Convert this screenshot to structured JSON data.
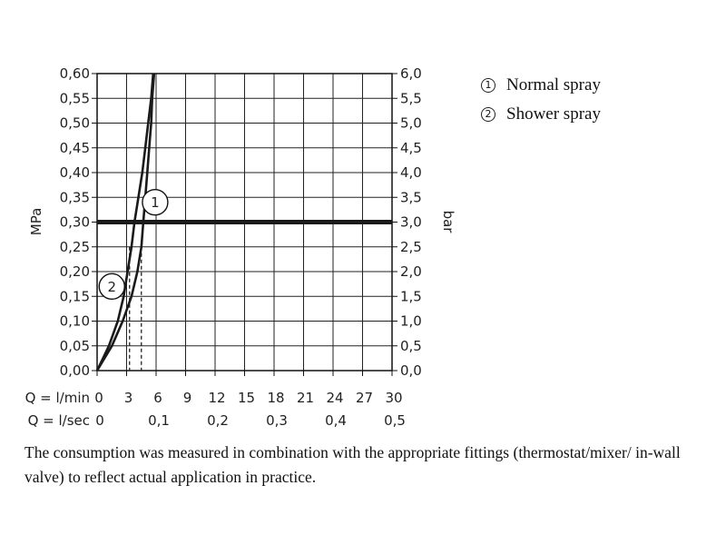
{
  "chart_data": {
    "type": "line",
    "left_axis": {
      "label": "MPa",
      "range": [
        0,
        0.6
      ],
      "ticks": [
        "0,00",
        "0,05",
        "0,10",
        "0,15",
        "0,20",
        "0,25",
        "0,30",
        "0,35",
        "0,40",
        "0,45",
        "0,50",
        "0,55",
        "0,60"
      ]
    },
    "right_axis": {
      "label": "bar",
      "range": [
        0,
        6
      ],
      "ticks": [
        "0,0",
        "0,5",
        "1,0",
        "1,5",
        "2,0",
        "2,5",
        "3,0",
        "3,5",
        "4,0",
        "4,5",
        "5,0",
        "5,5",
        "6,0"
      ]
    },
    "x_axis": {
      "range": [
        0,
        30
      ],
      "row1_label": "Q = l/min",
      "row1_ticks": [
        {
          "x": 0,
          "label": "0"
        },
        {
          "x": 3,
          "label": "3"
        },
        {
          "x": 6,
          "label": "6"
        },
        {
          "x": 9,
          "label": "9"
        },
        {
          "x": 12,
          "label": "12"
        },
        {
          "x": 15,
          "label": "15"
        },
        {
          "x": 18,
          "label": "18"
        },
        {
          "x": 21,
          "label": "21"
        },
        {
          "x": 24,
          "label": "24"
        },
        {
          "x": 27,
          "label": "27"
        },
        {
          "x": 30,
          "label": "30"
        }
      ],
      "row2_label": "Q = l/sec",
      "row2_ticks": [
        {
          "x": 0,
          "label": "0"
        },
        {
          "x": 6,
          "label": "0,1"
        },
        {
          "x": 12,
          "label": "0,2"
        },
        {
          "x": 18,
          "label": "0,3"
        },
        {
          "x": 24,
          "label": "0,4"
        },
        {
          "x": 30,
          "label": "0,5"
        }
      ]
    },
    "grid": true,
    "reference_line": {
      "y": 0.3
    },
    "series": [
      {
        "id": "1",
        "name": "Normal spray",
        "points": [
          [
            0,
            0
          ],
          [
            1.2,
            0.05
          ],
          [
            2.1,
            0.1
          ],
          [
            2.7,
            0.15
          ],
          [
            3.1,
            0.2
          ],
          [
            3.5,
            0.25
          ],
          [
            3.8,
            0.3
          ],
          [
            4.2,
            0.35
          ],
          [
            4.6,
            0.4
          ],
          [
            4.9,
            0.45
          ],
          [
            5.2,
            0.5
          ],
          [
            5.5,
            0.55
          ],
          [
            5.7,
            0.6
          ]
        ],
        "callout": {
          "x": 5.9,
          "y": 0.34
        }
      },
      {
        "id": "2",
        "name": "Shower spray",
        "points": [
          [
            0,
            0
          ],
          [
            1.5,
            0.05
          ],
          [
            2.6,
            0.1
          ],
          [
            3.5,
            0.15
          ],
          [
            4.1,
            0.2
          ],
          [
            4.5,
            0.25
          ],
          [
            4.7,
            0.3
          ],
          [
            4.9,
            0.35
          ],
          [
            5.1,
            0.4
          ],
          [
            5.3,
            0.45
          ],
          [
            5.5,
            0.5
          ],
          [
            5.6,
            0.55
          ],
          [
            5.8,
            0.6
          ]
        ],
        "callout": {
          "x": 1.5,
          "y": 0.17
        }
      }
    ],
    "dashed_markers": [
      {
        "x": 3.3,
        "y": 0.25
      },
      {
        "x": 4.5,
        "y": 0.25
      }
    ]
  },
  "legend": {
    "items": [
      {
        "num": "1",
        "label": "Normal spray"
      },
      {
        "num": "2",
        "label": "Shower spray"
      }
    ]
  },
  "footnote": "The consumption was measured in combination with the appropriate fittings (thermostat/mixer/ in-wall valve) to reflect actual application in practice."
}
